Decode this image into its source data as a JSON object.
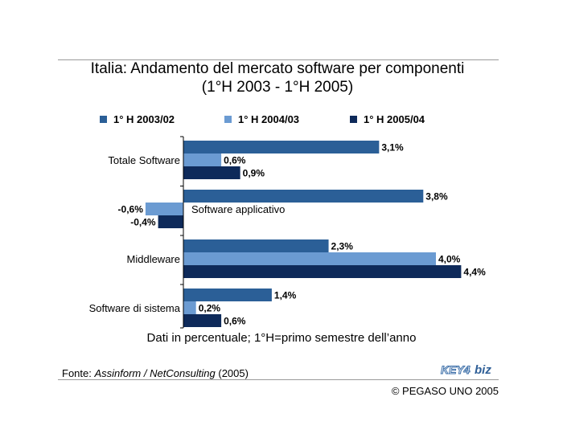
{
  "title_line1": "Italia: Andamento del mercato software per componenti",
  "title_line2": "(1°H 2003 - 1°H 2005)",
  "note": "Dati in percentuale; 1°H=primo semestre dell’anno",
  "source": {
    "prefix": "Fonte: ",
    "italic": "Assinform / NetConsulting",
    "suffix": " (2005)"
  },
  "logo": {
    "part1": "KEY4",
    "part2": "biz"
  },
  "copyright": "© PEGASO UNO 2005",
  "colors": {
    "series1": "#2b5f97",
    "series2": "#6b9bd2",
    "series3": "#0e2a5a"
  },
  "chart_data": {
    "type": "bar",
    "orientation": "horizontal",
    "categories": [
      "Totale Software",
      "Software applicativo",
      "Middleware",
      "Software di sistema"
    ],
    "series": [
      {
        "name": "1° H 2003/02",
        "values": [
          3.1,
          3.8,
          2.3,
          1.4
        ],
        "labels": [
          "3,1%",
          "3,8%",
          "2,3%",
          "1,4%"
        ],
        "color": "#2b5f97"
      },
      {
        "name": "1° H 2004/03",
        "values": [
          0.6,
          -0.6,
          4.0,
          0.2
        ],
        "labels": [
          "0,6%",
          "-0,6%",
          "4,0%",
          "0,2%"
        ],
        "color": "#6b9bd2"
      },
      {
        "name": "1° H 2005/04",
        "values": [
          0.9,
          -0.4,
          4.4,
          0.6
        ],
        "labels": [
          "0,9%",
          "-0,4%",
          "4,4%",
          "0,6%"
        ],
        "color": "#0e2a5a"
      }
    ],
    "legend": "top",
    "grid": false
  }
}
